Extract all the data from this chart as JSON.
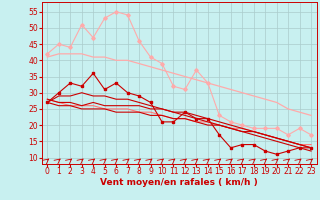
{
  "background_color": "#c8f0f0",
  "grid_color": "#aacccc",
  "xlabel": "Vent moyen/en rafales ( km/h )",
  "xlabel_color": "#cc0000",
  "xlabel_fontsize": 6.5,
  "tick_color": "#cc0000",
  "tick_fontsize": 5.5,
  "ylim": [
    8,
    58
  ],
  "xlim": [
    -0.5,
    23.5
  ],
  "yticks": [
    10,
    15,
    20,
    25,
    30,
    35,
    40,
    45,
    50,
    55
  ],
  "xticks": [
    0,
    1,
    2,
    3,
    4,
    5,
    6,
    7,
    8,
    9,
    10,
    11,
    12,
    13,
    14,
    15,
    16,
    17,
    18,
    19,
    20,
    21,
    22,
    23
  ],
  "lines": [
    {
      "x": [
        0,
        1,
        2,
        3,
        4,
        5,
        6,
        7,
        8,
        9,
        10,
        11,
        12,
        13,
        14,
        15,
        16,
        17,
        18,
        19,
        20,
        21,
        22,
        23
      ],
      "y": [
        42,
        45,
        44,
        51,
        47,
        53,
        55,
        54,
        46,
        41,
        39,
        32,
        31,
        37,
        33,
        23,
        21,
        20,
        19,
        19,
        19,
        17,
        19,
        17
      ],
      "color": "#ffaaaa",
      "marker": "D",
      "markersize": 1.8,
      "linewidth": 0.8,
      "linestyle": "-"
    },
    {
      "x": [
        0,
        1,
        2,
        3,
        4,
        5,
        6,
        7,
        8,
        9,
        10,
        11,
        12,
        13,
        14,
        15,
        16,
        17,
        18,
        19,
        20,
        21,
        22,
        23
      ],
      "y": [
        41,
        42,
        42,
        42,
        41,
        41,
        40,
        40,
        39,
        38,
        37,
        36,
        35,
        34,
        33,
        32,
        31,
        30,
        29,
        28,
        27,
        25,
        24,
        23
      ],
      "color": "#ffaaaa",
      "marker": null,
      "linewidth": 0.9,
      "linestyle": "-"
    },
    {
      "x": [
        0,
        1,
        2,
        3,
        4,
        5,
        6,
        7,
        8,
        9,
        10,
        11,
        12,
        13,
        14,
        15,
        16,
        17,
        18,
        19,
        20,
        21,
        22,
        23
      ],
      "y": [
        28,
        27,
        26,
        26,
        26,
        25,
        25,
        25,
        24,
        24,
        23,
        22,
        22,
        21,
        21,
        20,
        19,
        19,
        18,
        17,
        16,
        15,
        14,
        14
      ],
      "color": "#ff7777",
      "marker": null,
      "linewidth": 0.8,
      "linestyle": "-"
    },
    {
      "x": [
        0,
        1,
        2,
        3,
        4,
        5,
        6,
        7,
        8,
        9,
        10,
        11,
        12,
        13,
        14,
        15,
        16,
        17,
        18,
        19,
        20,
        21,
        22,
        23
      ],
      "y": [
        27,
        26,
        26,
        25,
        25,
        25,
        24,
        24,
        24,
        23,
        23,
        22,
        22,
        21,
        20,
        20,
        19,
        18,
        18,
        17,
        16,
        15,
        14,
        13
      ],
      "color": "#cc0000",
      "marker": null,
      "linewidth": 0.8,
      "linestyle": "-"
    },
    {
      "x": [
        0,
        1,
        2,
        3,
        4,
        5,
        6,
        7,
        8,
        9,
        10,
        11,
        12,
        13,
        14,
        15,
        16,
        17,
        18,
        19,
        20,
        21,
        22,
        23
      ],
      "y": [
        27,
        30,
        33,
        32,
        36,
        31,
        33,
        30,
        29,
        27,
        21,
        21,
        24,
        22,
        22,
        17,
        13,
        14,
        14,
        12,
        11,
        12,
        13,
        13
      ],
      "color": "#cc0000",
      "marker": "s",
      "markersize": 1.8,
      "linewidth": 0.8,
      "linestyle": "-"
    },
    {
      "x": [
        0,
        1,
        2,
        3,
        4,
        5,
        6,
        7,
        8,
        9,
        10,
        11,
        12,
        13,
        14,
        15,
        16,
        17,
        18,
        19,
        20,
        21,
        22,
        23
      ],
      "y": [
        28,
        27,
        27,
        26,
        27,
        26,
        26,
        26,
        26,
        25,
        25,
        24,
        24,
        23,
        22,
        21,
        20,
        19,
        18,
        17,
        16,
        15,
        14,
        13
      ],
      "color": "#cc0000",
      "marker": null,
      "linewidth": 0.8,
      "linestyle": "-"
    },
    {
      "x": [
        0,
        1,
        2,
        3,
        4,
        5,
        6,
        7,
        8,
        9,
        10,
        11,
        12,
        13,
        14,
        15,
        16,
        17,
        18,
        19,
        20,
        21,
        22,
        23
      ],
      "y": [
        27,
        29,
        29,
        30,
        29,
        29,
        28,
        28,
        27,
        26,
        25,
        24,
        23,
        22,
        21,
        20,
        19,
        18,
        17,
        16,
        15,
        14,
        13,
        12
      ],
      "color": "#cc0000",
      "marker": null,
      "linewidth": 0.8,
      "linestyle": "-"
    }
  ],
  "arrow_color": "#cc0000"
}
